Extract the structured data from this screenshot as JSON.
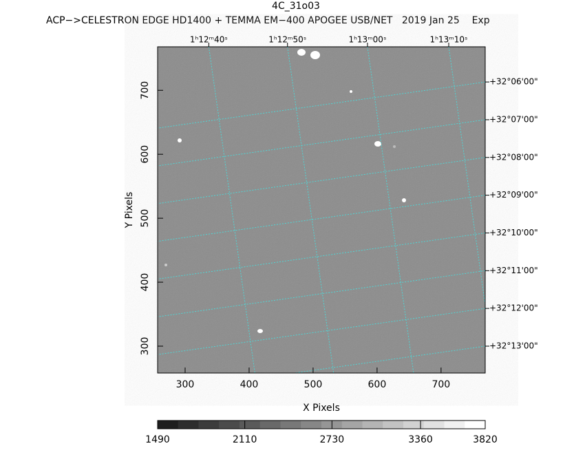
{
  "chart_data": {
    "type": "image",
    "title": "4C_31o03",
    "subtitle": "ACP−>CELESTRON EDGE HD1400 + TEMMA EM−400 APOGEE USB/NET   2019 Jan 25    Exp",
    "x_label": "X Pixels",
    "y_label": "Y Pixels",
    "xlim": [
      257,
      769
    ],
    "ylim": [
      258,
      768
    ],
    "xticks": [
      300,
      400,
      500,
      600,
      700
    ],
    "yticks": [
      300,
      400,
      500,
      600,
      700
    ],
    "ra_ticks": [
      {
        "value": 337,
        "label": "1ʰ12ᵐ40ˢ"
      },
      {
        "value": 460,
        "label": "1ʰ12ᵐ50ˢ"
      },
      {
        "value": 585,
        "label": "1ʰ13ᵐ00ˢ"
      },
      {
        "value": 712,
        "label": "1ʰ13ᵐ10ˢ"
      }
    ],
    "dec_ticks": [
      {
        "value": 713,
        "label": "+32°06'00\""
      },
      {
        "value": 654,
        "label": "+32°07'00\""
      },
      {
        "value": 595,
        "label": "+32°08'00\""
      },
      {
        "value": 536,
        "label": "+32°09'00\""
      },
      {
        "value": 477,
        "label": "+32°10'00\""
      },
      {
        "value": 418,
        "label": "+32°11'00\""
      },
      {
        "value": 359,
        "label": "+32°12'00\""
      },
      {
        "value": 300,
        "label": "+32°13'00\""
      }
    ],
    "grid_color": "#4fd6d6",
    "colorbar": {
      "lim": [
        1490,
        3820
      ],
      "ticks": [
        1490,
        2110,
        2730,
        3360,
        3820
      ]
    }
  }
}
